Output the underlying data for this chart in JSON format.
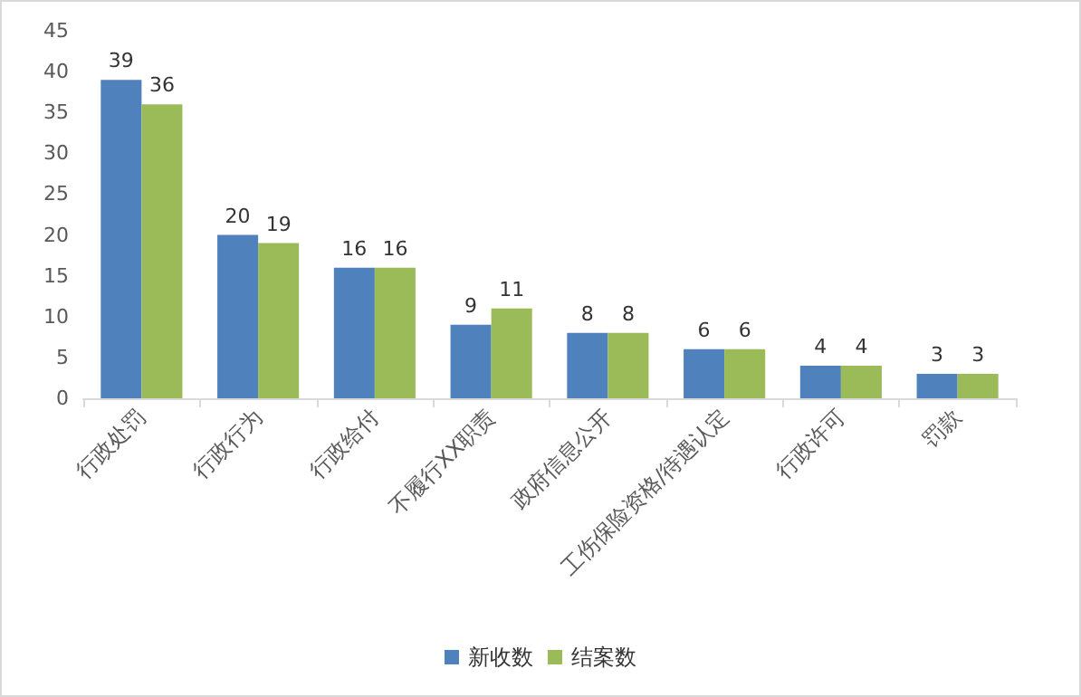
{
  "chart_data": {
    "type": "bar",
    "categories": [
      "行政处罚",
      "行政行为",
      "行政给付",
      "不履行XX职责",
      "政府信息公开",
      "工伤保险资格/待遇认定",
      "行政许可",
      "罚款"
    ],
    "series": [
      {
        "name": "新收数",
        "color": "#4f81bd",
        "values": [
          39,
          20,
          16,
          9,
          8,
          6,
          4,
          3
        ]
      },
      {
        "name": "结案数",
        "color": "#9bbb59",
        "values": [
          36,
          19,
          16,
          11,
          8,
          6,
          4,
          3
        ]
      }
    ],
    "ylim": [
      0,
      45
    ],
    "yticks": [
      0,
      5,
      10,
      15,
      20,
      25,
      30,
      35,
      40,
      45
    ],
    "grid": false,
    "legend": "bottom",
    "data_labels": true
  }
}
